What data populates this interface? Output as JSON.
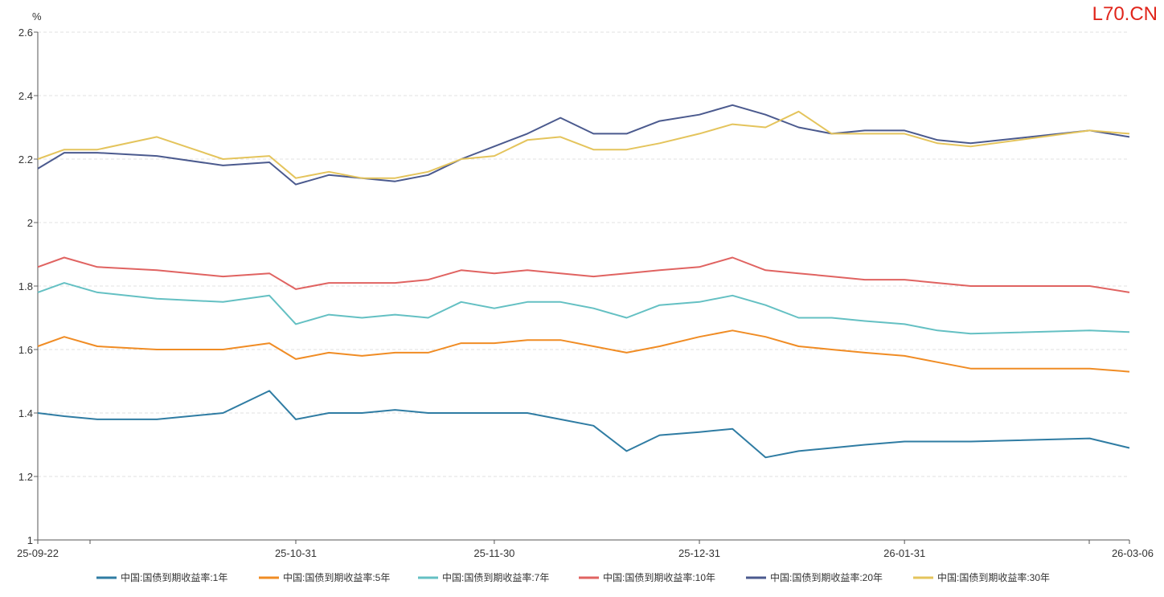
{
  "watermark": "L70.CN",
  "chart_data": {
    "type": "line",
    "ylabel": "%",
    "ylim": [
      1,
      2.6
    ],
    "yticks": [
      "1",
      "1.2",
      "1.4",
      "1.6",
      "1.8",
      "2",
      "2.2",
      "2.4",
      "2.6"
    ],
    "xtick_labels": [
      "25-09-22",
      "25-10-31",
      "25-11-30",
      "25-12-31",
      "26-01-31",
      "26-03-06"
    ],
    "xtick_dates": [
      "2025-09-22",
      "2025-10-31",
      "2025-11-30",
      "2025-12-31",
      "2026-01-31",
      "2026-03-06"
    ],
    "grid": true,
    "legend_position": "bottom",
    "x": [
      "2025-09-22",
      "2025-09-26",
      "2025-10-01",
      "2025-10-10",
      "2025-10-20",
      "2025-10-27",
      "2025-10-31",
      "2025-11-05",
      "2025-11-10",
      "2025-11-15",
      "2025-11-20",
      "2025-11-25",
      "2025-11-30",
      "2025-12-05",
      "2025-12-10",
      "2025-12-15",
      "2025-12-20",
      "2025-12-25",
      "2025-12-31",
      "2026-01-05",
      "2026-01-10",
      "2026-01-15",
      "2026-01-20",
      "2026-01-25",
      "2026-01-31",
      "2026-02-05",
      "2026-02-10",
      "2026-02-28",
      "2026-03-06"
    ],
    "series": [
      {
        "name": "中国:国债到期收益率:1年",
        "color": "#2f7ca3",
        "values": [
          1.4,
          1.39,
          1.38,
          1.38,
          1.4,
          1.47,
          1.38,
          1.4,
          1.4,
          1.41,
          1.4,
          1.4,
          1.4,
          1.4,
          1.38,
          1.36,
          1.28,
          1.33,
          1.34,
          1.35,
          1.26,
          1.28,
          1.29,
          1.3,
          1.31,
          1.31,
          1.31,
          1.32,
          1.29
        ]
      },
      {
        "name": "中国:国债到期收益率:5年",
        "color": "#f08c24",
        "values": [
          1.61,
          1.64,
          1.61,
          1.6,
          1.6,
          1.62,
          1.57,
          1.59,
          1.58,
          1.59,
          1.59,
          1.62,
          1.62,
          1.63,
          1.63,
          1.61,
          1.59,
          1.61,
          1.64,
          1.66,
          1.64,
          1.61,
          1.6,
          1.59,
          1.58,
          1.56,
          1.54,
          1.54,
          1.53
        ]
      },
      {
        "name": "中国:国债到期收益率:7年",
        "color": "#64c0c3",
        "values": [
          1.78,
          1.81,
          1.78,
          1.76,
          1.75,
          1.77,
          1.68,
          1.71,
          1.7,
          1.71,
          1.7,
          1.75,
          1.73,
          1.75,
          1.75,
          1.73,
          1.7,
          1.74,
          1.75,
          1.77,
          1.74,
          1.7,
          1.7,
          1.69,
          1.68,
          1.66,
          1.65,
          1.66,
          1.655
        ]
      },
      {
        "name": "中国:国债到期收益率:10年",
        "color": "#e06361",
        "values": [
          1.86,
          1.89,
          1.86,
          1.85,
          1.83,
          1.84,
          1.79,
          1.81,
          1.81,
          1.81,
          1.82,
          1.85,
          1.84,
          1.85,
          1.84,
          1.83,
          1.84,
          1.85,
          1.86,
          1.89,
          1.85,
          1.84,
          1.83,
          1.82,
          1.82,
          1.81,
          1.8,
          1.8,
          1.78
        ]
      },
      {
        "name": "中国:国债到期收益率:20年",
        "color": "#4b5a8e",
        "values": [
          2.17,
          2.22,
          2.22,
          2.21,
          2.18,
          2.19,
          2.12,
          2.15,
          2.14,
          2.13,
          2.15,
          2.2,
          2.24,
          2.28,
          2.33,
          2.28,
          2.28,
          2.32,
          2.34,
          2.37,
          2.34,
          2.3,
          2.28,
          2.29,
          2.29,
          2.26,
          2.25,
          2.29,
          2.27
        ]
      },
      {
        "name": "中国:国债到期收益率:30年",
        "color": "#e4c45c",
        "values": [
          2.2,
          2.23,
          2.23,
          2.27,
          2.2,
          2.21,
          2.14,
          2.16,
          2.14,
          2.14,
          2.16,
          2.2,
          2.21,
          2.26,
          2.27,
          2.23,
          2.23,
          2.25,
          2.28,
          2.31,
          2.3,
          2.35,
          2.28,
          2.28,
          2.28,
          2.25,
          2.24,
          2.29,
          2.28
        ]
      }
    ]
  }
}
